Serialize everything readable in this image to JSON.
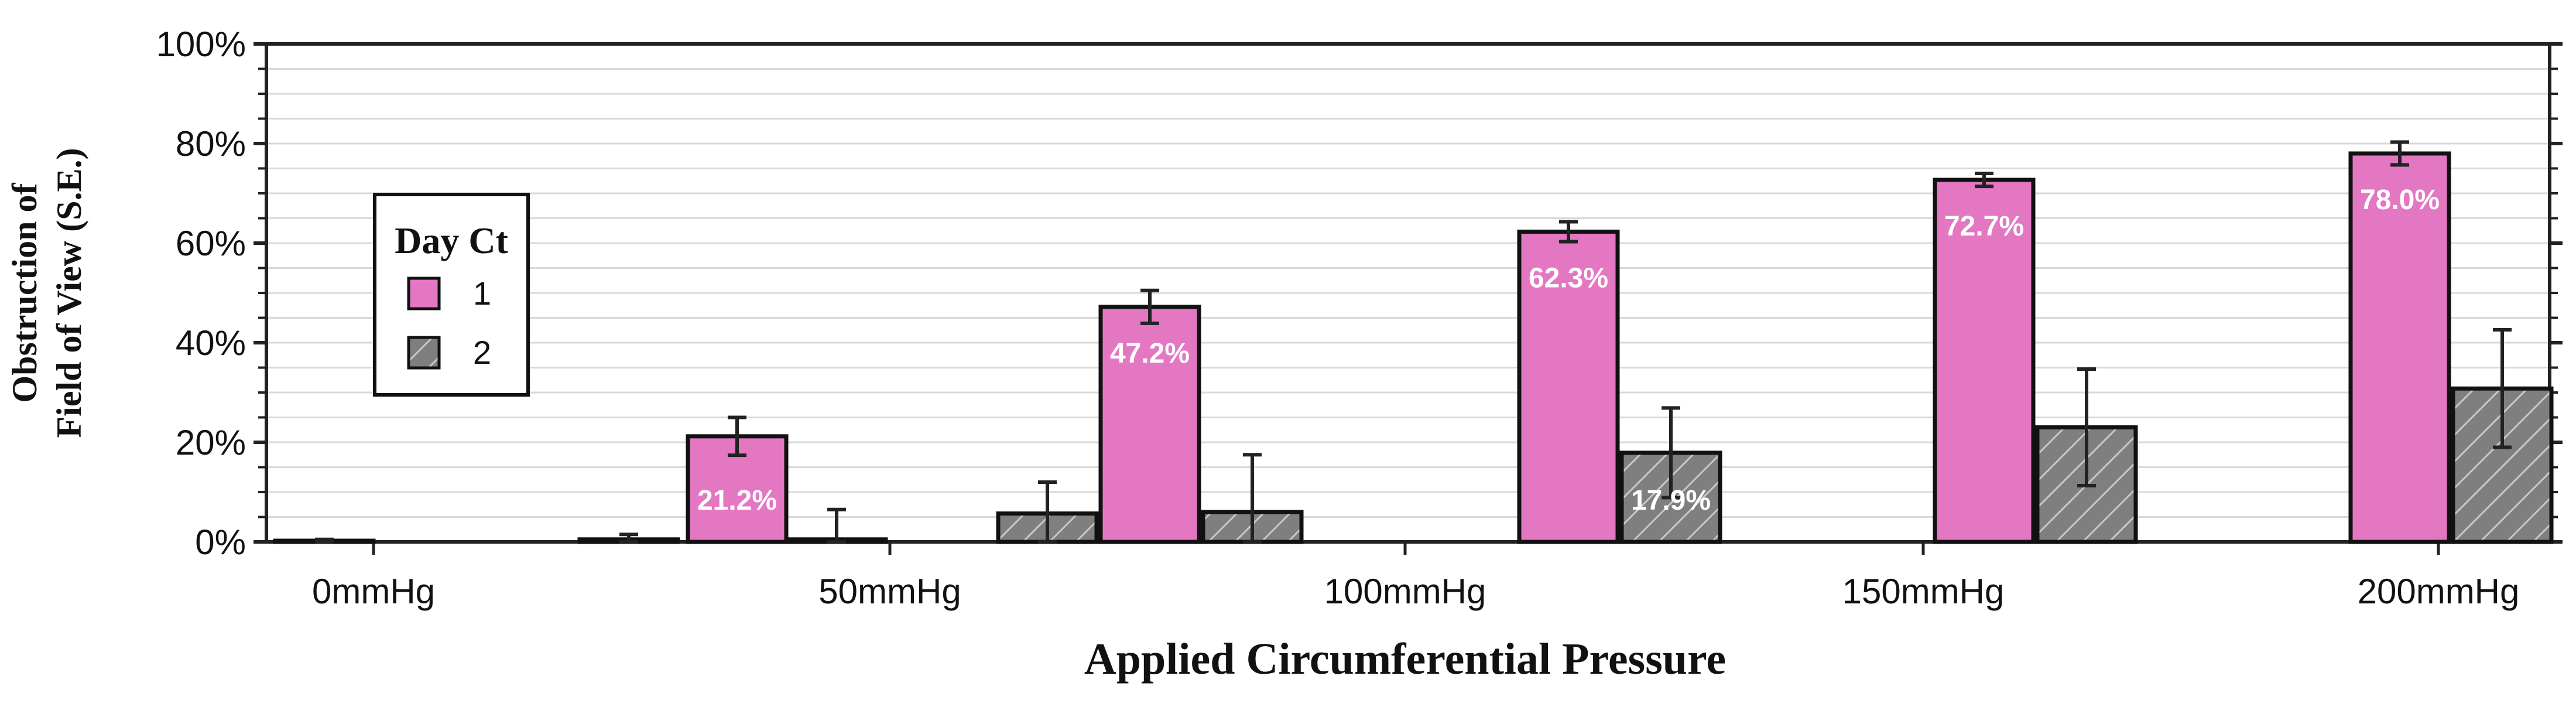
{
  "chart_data": {
    "type": "bar",
    "categories": [
      "0mmHg",
      "50mmHg",
      "100mmHg",
      "150mmHg",
      "200mmHg"
    ],
    "xlabel": "Applied Circumferential Pressure",
    "ylabel_lines": [
      "Obstruction of",
      "Field of View (S.E.)"
    ],
    "ylim": [
      0,
      100
    ],
    "yticks": [
      "0%",
      "20%",
      "40%",
      "60%",
      "80%",
      "100%"
    ],
    "grid": true,
    "legend": {
      "title": "Day Ct",
      "position": "left",
      "entries": [
        "1",
        "2"
      ]
    },
    "bars": [
      {
        "series": "2",
        "value": 0.2,
        "err": 0.3,
        "label": ""
      },
      {
        "series": "2",
        "value": 0.5,
        "err": 1.0,
        "label": ""
      },
      {
        "series": "1",
        "value": 21.2,
        "err": 3.8,
        "label": "21.2%"
      },
      {
        "series": "2",
        "value": 0.5,
        "err": 6.0,
        "label": ""
      },
      {
        "series": "2",
        "value": 5.7,
        "err": 6.3,
        "label": ""
      },
      {
        "series": "1",
        "value": 47.2,
        "err": 3.3,
        "label": "47.2%"
      },
      {
        "series": "2",
        "value": 6.0,
        "err": 11.5,
        "label": ""
      },
      {
        "series": "1",
        "value": 62.3,
        "err": 2.0,
        "label": "62.3%"
      },
      {
        "series": "2",
        "value": 17.9,
        "err": 9.0,
        "label": "17.9%"
      },
      {
        "series": "1",
        "value": 72.7,
        "err": 1.3,
        "label": "72.7%"
      },
      {
        "series": "2",
        "value": 23.0,
        "err": 11.7,
        "label": ""
      },
      {
        "series": "1",
        "value": 78.0,
        "err": 2.3,
        "label": "78.0%"
      },
      {
        "series": "2",
        "value": 30.8,
        "err": 11.8,
        "label": ""
      }
    ],
    "colors": {
      "series1": "#e377c2",
      "series2": "#7f7f7f",
      "hatch": "#c8c8c8",
      "grid": "#d9d9d9",
      "axis": "#222222"
    }
  }
}
